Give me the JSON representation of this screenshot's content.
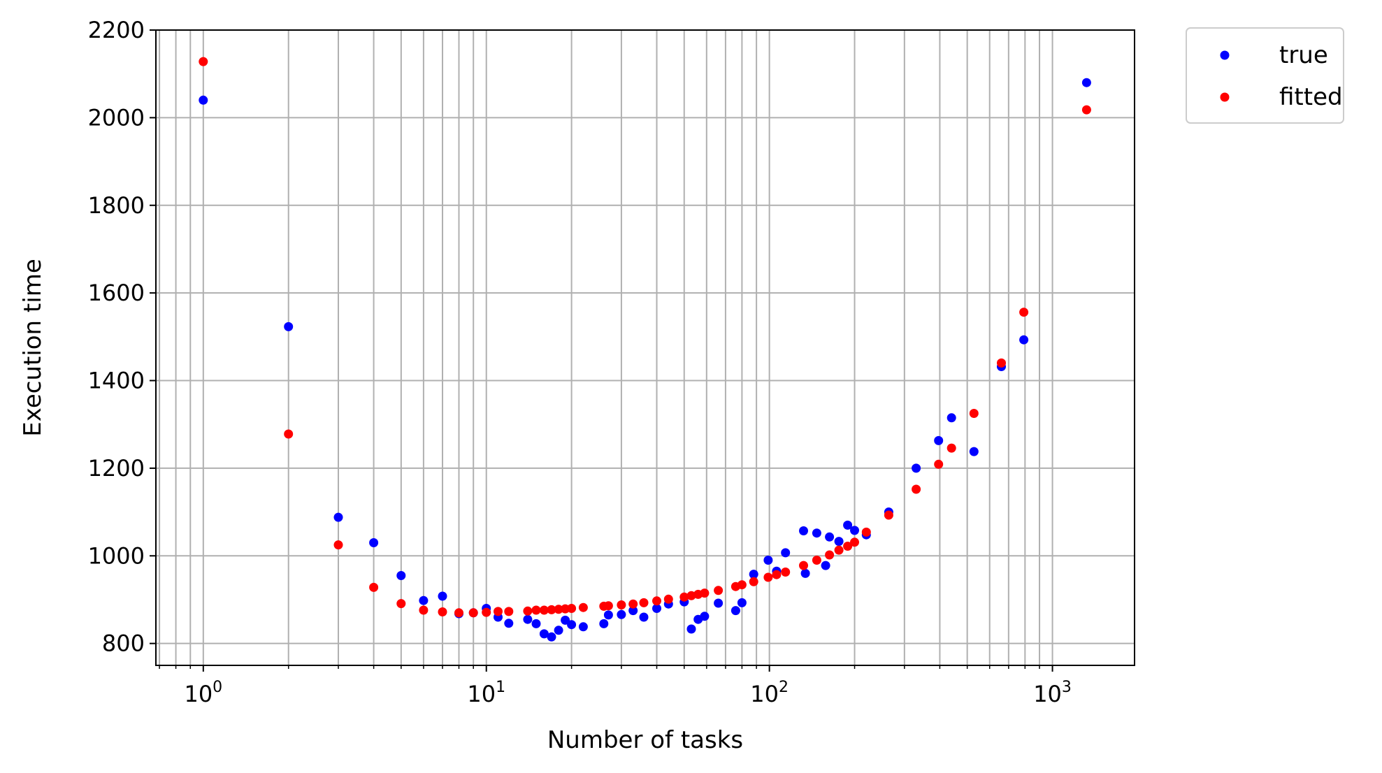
{
  "chart_data": {
    "type": "scatter",
    "title": "",
    "xlabel": "Number of tasks",
    "ylabel": "Execution time",
    "xscale": "log",
    "xlim": [
      0.68,
      1950
    ],
    "ylim": [
      750,
      2200
    ],
    "grid": true,
    "legend": "outside top-right",
    "x_ticks": [
      {
        "base": "10",
        "exp": "0",
        "value": 1
      },
      {
        "base": "10",
        "exp": "1",
        "value": 10
      },
      {
        "base": "10",
        "exp": "2",
        "value": 100
      },
      {
        "base": "10",
        "exp": "3",
        "value": 1000
      }
    ],
    "y_ticks": [
      "800",
      "1000",
      "1200",
      "1400",
      "1600",
      "1800",
      "2000",
      "2200"
    ],
    "series": [
      {
        "name": "true",
        "color": "#0000ff",
        "points": [
          [
            1,
            2040
          ],
          [
            2,
            1523
          ],
          [
            3,
            1088
          ],
          [
            4,
            1030
          ],
          [
            5,
            955
          ],
          [
            6,
            898
          ],
          [
            7,
            908
          ],
          [
            8,
            868
          ],
          [
            9,
            870
          ],
          [
            10,
            880
          ],
          [
            11,
            860
          ],
          [
            12,
            846
          ],
          [
            14,
            855
          ],
          [
            15,
            845
          ],
          [
            16,
            822
          ],
          [
            17,
            815
          ],
          [
            18,
            830
          ],
          [
            19,
            853
          ],
          [
            20,
            843
          ],
          [
            22,
            838
          ],
          [
            26,
            845
          ],
          [
            27,
            865
          ],
          [
            30,
            866
          ],
          [
            33,
            875
          ],
          [
            36,
            860
          ],
          [
            40,
            880
          ],
          [
            44,
            890
          ],
          [
            50,
            895
          ],
          [
            53,
            833
          ],
          [
            56,
            855
          ],
          [
            59,
            862
          ],
          [
            66,
            892
          ],
          [
            76,
            875
          ],
          [
            80,
            893
          ],
          [
            88,
            958
          ],
          [
            99,
            990
          ],
          [
            106,
            965
          ],
          [
            114,
            1007
          ],
          [
            132,
            1057
          ],
          [
            134,
            960
          ],
          [
            147,
            1052
          ],
          [
            158,
            978
          ],
          [
            163,
            1043
          ],
          [
            176,
            1033
          ],
          [
            189,
            1070
          ],
          [
            200,
            1058
          ],
          [
            220,
            1048
          ],
          [
            264,
            1100
          ],
          [
            330,
            1200
          ],
          [
            396,
            1263
          ],
          [
            440,
            1315
          ],
          [
            528,
            1238
          ],
          [
            660,
            1432
          ],
          [
            792,
            1493
          ],
          [
            1320,
            2080
          ]
        ]
      },
      {
        "name": "fitted",
        "color": "#ff0000",
        "points": [
          [
            1,
            2128
          ],
          [
            2,
            1278
          ],
          [
            3,
            1025
          ],
          [
            4,
            928
          ],
          [
            5,
            891
          ],
          [
            6,
            876
          ],
          [
            7,
            872
          ],
          [
            8,
            870
          ],
          [
            9,
            870
          ],
          [
            10,
            871
          ],
          [
            11,
            873
          ],
          [
            12,
            873
          ],
          [
            14,
            874
          ],
          [
            15,
            876
          ],
          [
            16,
            876
          ],
          [
            17,
            877
          ],
          [
            18,
            878
          ],
          [
            19,
            879
          ],
          [
            20,
            880
          ],
          [
            22,
            882
          ],
          [
            26,
            885
          ],
          [
            27,
            886
          ],
          [
            30,
            888
          ],
          [
            33,
            890
          ],
          [
            36,
            893
          ],
          [
            40,
            897
          ],
          [
            44,
            901
          ],
          [
            50,
            906
          ],
          [
            53,
            909
          ],
          [
            56,
            912
          ],
          [
            59,
            915
          ],
          [
            66,
            921
          ],
          [
            76,
            930
          ],
          [
            80,
            934
          ],
          [
            88,
            941
          ],
          [
            99,
            951
          ],
          [
            106,
            957
          ],
          [
            114,
            963
          ],
          [
            132,
            978
          ],
          [
            147,
            990
          ],
          [
            163,
            1002
          ],
          [
            176,
            1013
          ],
          [
            189,
            1022
          ],
          [
            200,
            1031
          ],
          [
            220,
            1054
          ],
          [
            264,
            1093
          ],
          [
            330,
            1152
          ],
          [
            396,
            1209
          ],
          [
            440,
            1246
          ],
          [
            528,
            1325
          ],
          [
            660,
            1440
          ],
          [
            792,
            1556
          ],
          [
            1320,
            2018
          ]
        ]
      }
    ]
  }
}
